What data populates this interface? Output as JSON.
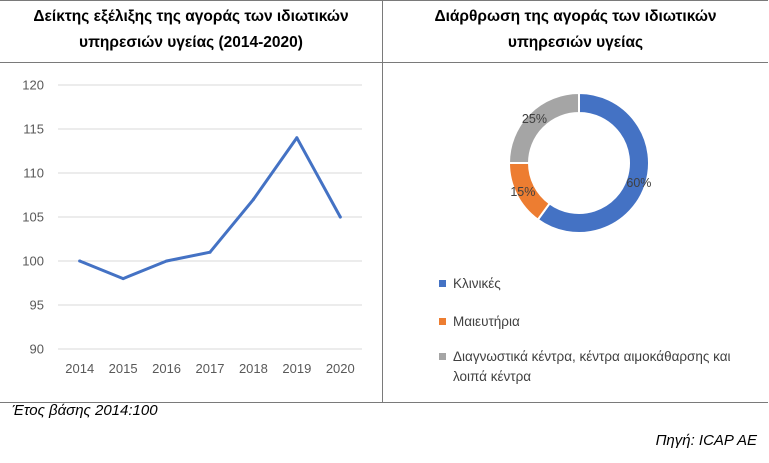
{
  "left_title_line1": "Δείκτης εξέλιξης της αγοράς των ιδιωτικών",
  "left_title_line2": "υπηρεσιών υγείας (2014-2020)",
  "right_title_line1": "Διάρθρωση της αγοράς των ιδιωτικών",
  "right_title_line2": "υπηρεσιών υγείας",
  "footnote": "Έτος βάσης 2014:100",
  "source": "Πηγή:  ICAP AE",
  "chart_data": [
    {
      "type": "line",
      "title": "Δείκτης εξέλιξης της αγοράς των ιδιωτικών υπηρεσιών υγείας (2014-2020)",
      "categories": [
        "2014",
        "2015",
        "2016",
        "2017",
        "2018",
        "2019",
        "2020"
      ],
      "values": [
        100,
        98,
        100,
        101,
        107,
        114,
        105
      ],
      "ylim": [
        90,
        120
      ],
      "yticks": [
        "90",
        "95",
        "100",
        "105",
        "110",
        "115",
        "120"
      ],
      "grid": true,
      "color": "#4472c4"
    },
    {
      "type": "pie",
      "title": "Διάρθρωση της αγοράς των ιδιωτικών υπηρεσιών υγείας",
      "donut": true,
      "legend_position": "bottom",
      "slices": [
        {
          "label": "Κλινικές",
          "value": 60,
          "value_label": "60%",
          "color": "#4472c4"
        },
        {
          "label": "Μαιευτήρια",
          "value": 15,
          "value_label": "15%",
          "color": "#ed7d31"
        },
        {
          "label": "Διαγνωστικά κέντρα, κέντρα αιμοκάθαρσης και",
          "label_line2": "λοιπά κέντρα",
          "value": 25,
          "value_label": "25%",
          "color": "#a5a5a5"
        }
      ]
    }
  ]
}
